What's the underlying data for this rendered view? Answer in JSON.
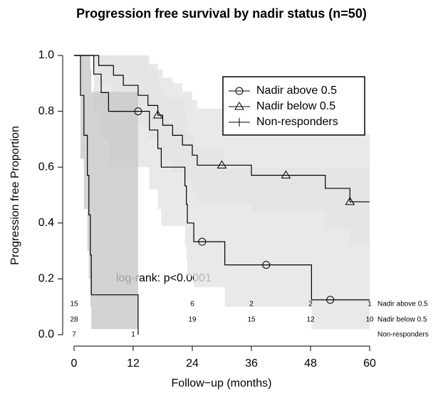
{
  "chart_data": {
    "type": "survival",
    "title": "Progression free survival by nadir status (n=50)",
    "x_label": "Follow−up (months)",
    "y_label": "Progression free Proportion",
    "annotation": "log-rank: p<0.0001",
    "xlim": [
      0,
      60
    ],
    "ylim": [
      0,
      1
    ],
    "xticks": [
      0,
      12,
      24,
      36,
      48,
      60
    ],
    "yticks": [
      {
        "value": 0,
        "label": "0.0"
      },
      0.2,
      0.4,
      0.6,
      0.8,
      {
        "value": 1,
        "label": "1.0"
      }
    ],
    "legend": "top-right",
    "series": [
      {
        "name": "Nadir above 0.5",
        "marker": "circle",
        "color": "#000000",
        "band_color": "#e3e3e3",
        "x": [
          0,
          4,
          5.5,
          7,
          15.3,
          17,
          17.7,
          22.5,
          22.8,
          23,
          24.3,
          30.6,
          48.2,
          60
        ],
        "values": [
          1,
          0.933,
          0.867,
          0.8,
          0.733,
          0.667,
          0.6,
          0.533,
          0.467,
          0.4,
          0.333,
          0.25,
          0.125,
          0.125
        ],
        "upper": [
          1,
          1,
          1,
          1,
          0.95,
          0.9,
          0.85,
          0.8,
          0.76,
          0.72,
          0.66,
          0.6,
          0.6,
          0.6
        ],
        "lower": [
          1,
          0.8,
          0.7,
          0.6,
          0.52,
          0.45,
          0.39,
          0.32,
          0.27,
          0.21,
          0.17,
          0.1,
          0.02,
          0.02
        ],
        "censored": {
          "x": [
            13,
            26,
            39,
            52
          ],
          "values": [
            0.8,
            0.333,
            0.25,
            0.125
          ]
        }
      },
      {
        "name": "Nadir below 0.5",
        "marker": "triangle",
        "color": "#000000",
        "band_color": "#e3e3e3",
        "x": [
          0,
          5,
          8,
          10,
          13,
          15,
          17,
          18,
          20,
          22,
          24,
          25,
          36,
          51,
          56,
          60
        ],
        "values": [
          1,
          0.964,
          0.929,
          0.893,
          0.857,
          0.821,
          0.786,
          0.75,
          0.714,
          0.679,
          0.643,
          0.607,
          0.571,
          0.524,
          0.476,
          0.476
        ],
        "upper": [
          1,
          1,
          1,
          1,
          1,
          0.97,
          0.95,
          0.92,
          0.9,
          0.87,
          0.84,
          0.81,
          0.78,
          0.76,
          0.72,
          0.72
        ],
        "lower": [
          1,
          0.9,
          0.85,
          0.8,
          0.75,
          0.7,
          0.66,
          0.62,
          0.58,
          0.55,
          0.51,
          0.47,
          0.44,
          0.38,
          0.32,
          0.32
        ],
        "censored": {
          "x": [
            17,
            30,
            43,
            56
          ],
          "values": [
            0.786,
            0.607,
            0.571,
            0.476
          ]
        }
      },
      {
        "name": "Non-responders",
        "marker": "plus",
        "color": "#000000",
        "band_color": "#c8c8c8",
        "x": [
          0,
          1.3,
          2,
          2.7,
          3,
          3.3,
          3.5,
          13
        ],
        "values": [
          1,
          0.857,
          0.714,
          0.571,
          0.429,
          0.286,
          0.143,
          0
        ],
        "upper": [
          1,
          1,
          1,
          1,
          1,
          0.95,
          0.87,
          0.87
        ],
        "lower": [
          1,
          0.63,
          0.45,
          0.3,
          0.2,
          0.1,
          0.02,
          0.02
        ],
        "censored": {
          "x": [],
          "values": []
        }
      }
    ],
    "risk_table": {
      "times": [
        0,
        12,
        24,
        36,
        48,
        60
      ],
      "rows": [
        [
          15,
          null,
          6,
          2,
          2,
          1
        ],
        [
          28,
          null,
          19,
          15,
          12,
          10
        ],
        [
          7,
          1,
          null,
          null,
          null,
          null
        ]
      ]
    }
  }
}
